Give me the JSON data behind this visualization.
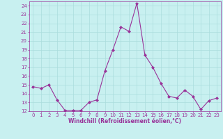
{
  "x": [
    0,
    1,
    2,
    3,
    4,
    5,
    6,
    7,
    8,
    9,
    10,
    11,
    12,
    13,
    14,
    15,
    16,
    17,
    18,
    19,
    20,
    21,
    22,
    23
  ],
  "y": [
    14.8,
    14.6,
    15.0,
    13.3,
    12.1,
    12.1,
    12.1,
    13.0,
    13.3,
    16.6,
    19.0,
    21.6,
    21.1,
    24.3,
    18.4,
    17.0,
    15.2,
    13.7,
    13.5,
    14.4,
    13.7,
    12.2,
    13.2,
    13.5
  ],
  "line_color": "#993399",
  "marker": "D",
  "marker_size": 2,
  "background_color": "#c8f0f0",
  "grid_color": "#aadddd",
  "xlabel": "Windchill (Refroidissement éolien,°C)",
  "xlabel_color": "#993399",
  "tick_color": "#993399",
  "ylim": [
    12,
    24.5
  ],
  "xlim": [
    -0.5,
    23.5
  ],
  "yticks": [
    12,
    13,
    14,
    15,
    16,
    17,
    18,
    19,
    20,
    21,
    22,
    23,
    24
  ],
  "xticks": [
    0,
    1,
    2,
    3,
    4,
    5,
    6,
    7,
    8,
    9,
    10,
    11,
    12,
    13,
    14,
    15,
    16,
    17,
    18,
    19,
    20,
    21,
    22,
    23
  ],
  "tick_fontsize": 5.0,
  "xlabel_fontsize": 5.5,
  "linewidth": 0.8
}
